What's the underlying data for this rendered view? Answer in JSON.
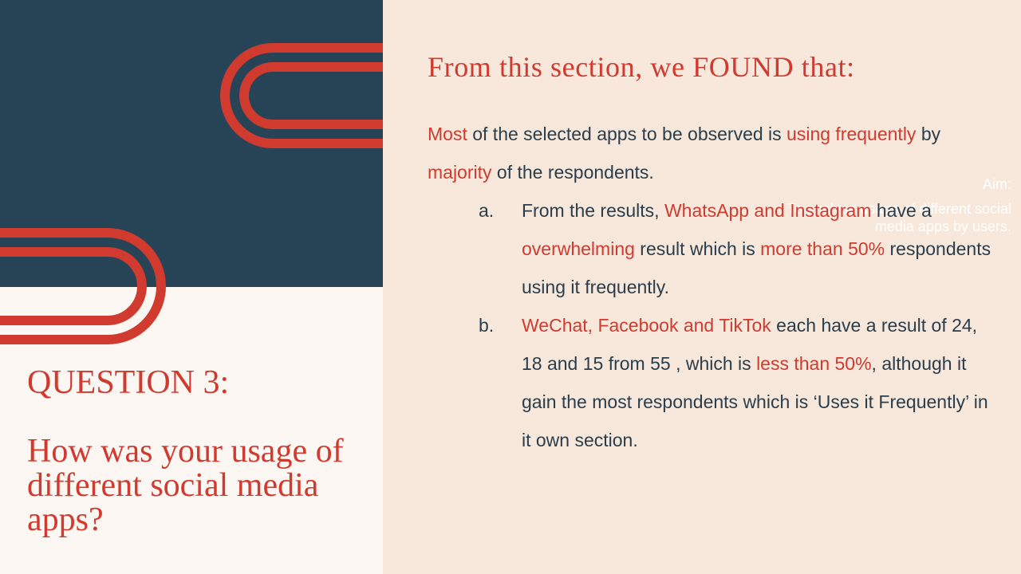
{
  "aim": {
    "label": "Aim:",
    "text": "To analyse usage of different social media apps by users."
  },
  "question": {
    "label": "QUESTION 3:",
    "text": "How was your usage of different social media apps?"
  },
  "findings": {
    "heading": "From this section, we FOUND that:",
    "intro": [
      {
        "t": "Most",
        "h": true
      },
      {
        "t": " of the selected apps to be observed is ",
        "h": false
      },
      {
        "t": "using frequently",
        "h": true
      },
      {
        "t": " by ",
        "h": false
      },
      {
        "t": "majority",
        "h": true
      },
      {
        "t": " of the respondents.",
        "h": false
      }
    ],
    "points": [
      {
        "marker": "a.",
        "segments": [
          {
            "t": "From the results, ",
            "h": false
          },
          {
            "t": "WhatsApp and Instagram",
            "h": true
          },
          {
            "t": " have a ",
            "h": false
          },
          {
            "t": "overwhelming",
            "h": true
          },
          {
            "t": " result which is ",
            "h": false
          },
          {
            "t": "more than 50%",
            "h": true
          },
          {
            "t": " respondents using it frequently.",
            "h": false
          }
        ]
      },
      {
        "marker": "b.",
        "segments": [
          {
            "t": "WeChat, Facebook and TikTok",
            "h": true
          },
          {
            "t": " each have a result of 24, 18 and 15 from 55 , which is ",
            "h": false
          },
          {
            "t": "less than 50%",
            "h": true
          },
          {
            "t": ", although it gain the most respondents which is ‘Uses it Frequently’ in it own section.",
            "h": false
          }
        ]
      }
    ]
  },
  "colors": {
    "navy": "#264456",
    "accent_red": "#d13a2f",
    "cream": "#fcf7f2",
    "peach": "#f8e8dc"
  }
}
